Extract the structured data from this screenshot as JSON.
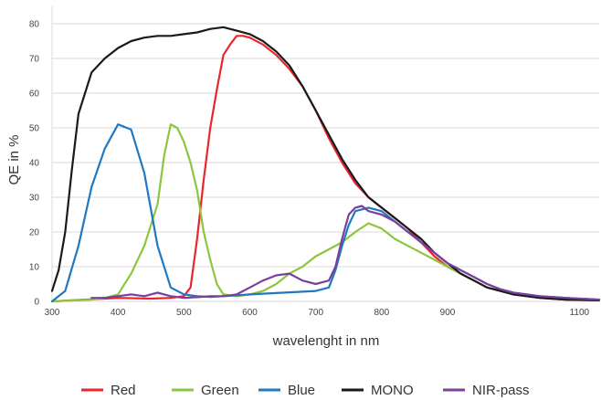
{
  "chart_data": {
    "type": "line",
    "title": "",
    "xlabel": "wavelenght in nm",
    "ylabel": "QE in %",
    "xlim": [
      300,
      1130
    ],
    "ylim": [
      0,
      85
    ],
    "x_ticks": [
      300,
      400,
      500,
      600,
      700,
      800,
      900,
      1100
    ],
    "x_tick_labels": [
      "300",
      "400",
      "500",
      "600",
      "700",
      "800",
      "900",
      "1100"
    ],
    "y_ticks": [
      0,
      10,
      20,
      30,
      40,
      50,
      60,
      70,
      80
    ],
    "y_tick_labels": [
      "0",
      "10",
      "20",
      "30",
      "40",
      "50",
      "60",
      "70",
      "80"
    ],
    "grid": true,
    "legend_position": "bottom",
    "series": [
      {
        "name": "Red",
        "color": "#e8262b",
        "x": [
          300,
          350,
          400,
          450,
          480,
          500,
          510,
          520,
          530,
          540,
          550,
          560,
          570,
          580,
          590,
          600,
          620,
          640,
          660,
          680,
          700,
          720,
          740,
          760,
          780,
          800,
          820,
          840,
          860,
          880,
          900,
          920,
          940,
          960,
          980,
          1000,
          1040,
          1080,
          1130
        ],
        "y": [
          0,
          0.5,
          1,
          0.8,
          1,
          1.5,
          4,
          18,
          35,
          50,
          61,
          71,
          74,
          76.5,
          76.5,
          76,
          74,
          71,
          67,
          62,
          55,
          47,
          40,
          34,
          30,
          27,
          24,
          21,
          17,
          13,
          10,
          8,
          6,
          4,
          3,
          2,
          1,
          0.5,
          0.3
        ]
      },
      {
        "name": "Green",
        "color": "#8cc63f",
        "x": [
          300,
          360,
          380,
          400,
          420,
          440,
          460,
          470,
          480,
          490,
          500,
          510,
          520,
          530,
          540,
          550,
          560,
          580,
          600,
          620,
          640,
          660,
          680,
          700,
          720,
          740,
          760,
          780,
          800,
          820,
          840,
          860,
          880,
          900,
          920,
          940,
          960,
          980,
          1000,
          1040,
          1080,
          1130
        ],
        "y": [
          0,
          0.5,
          1,
          2,
          8,
          16,
          28,
          42,
          51,
          50,
          46,
          40,
          32,
          20,
          12,
          5,
          2,
          1.5,
          2,
          3,
          5,
          8,
          10,
          13,
          15,
          17,
          20,
          22.5,
          21,
          18,
          16,
          14,
          12,
          10,
          8,
          6,
          4,
          3,
          2,
          1,
          0.5,
          0.3
        ]
      },
      {
        "name": "Blue",
        "color": "#1f78c1",
        "x": [
          300,
          320,
          340,
          360,
          380,
          400,
          420,
          440,
          460,
          480,
          500,
          520,
          540,
          560,
          600,
          650,
          700,
          720,
          730,
          740,
          750,
          760,
          780,
          800,
          820,
          840,
          860,
          880,
          900,
          920,
          940,
          960,
          980,
          1000,
          1040,
          1080,
          1130
        ],
        "y": [
          0,
          3,
          16,
          33,
          44,
          51,
          49.5,
          37,
          16,
          4,
          2,
          1.5,
          1.3,
          1.5,
          2,
          2.5,
          3,
          4,
          9,
          16,
          22,
          26,
          27,
          26,
          23,
          20,
          17,
          14,
          11,
          9,
          7,
          5,
          3.5,
          2.5,
          1.5,
          1,
          0.5
        ]
      },
      {
        "name": "MONO",
        "color": "#1a1a1a",
        "x": [
          300,
          310,
          320,
          330,
          340,
          350,
          360,
          380,
          400,
          420,
          440,
          460,
          480,
          500,
          520,
          540,
          560,
          580,
          600,
          620,
          640,
          660,
          680,
          700,
          720,
          740,
          760,
          780,
          800,
          820,
          840,
          860,
          880,
          900,
          920,
          940,
          960,
          980,
          1000,
          1040,
          1080,
          1130
        ],
        "y": [
          3,
          9,
          20,
          38,
          54,
          60,
          66,
          70,
          73,
          75,
          76,
          76.5,
          76.5,
          77,
          77.5,
          78.5,
          79,
          78,
          77,
          75,
          72,
          68,
          62,
          55,
          48,
          41,
          35,
          30,
          27,
          24,
          21,
          18,
          14,
          11,
          8,
          6,
          4,
          3,
          2,
          1,
          0.5,
          0.3
        ]
      },
      {
        "name": "NIR-pass",
        "color": "#7b3f9e",
        "x": [
          360,
          380,
          400,
          420,
          440,
          460,
          480,
          500,
          520,
          540,
          560,
          580,
          600,
          620,
          640,
          660,
          680,
          700,
          720,
          730,
          740,
          750,
          760,
          770,
          780,
          800,
          820,
          840,
          860,
          880,
          900,
          920,
          940,
          960,
          980,
          1000,
          1040,
          1080,
          1130
        ],
        "y": [
          1,
          1,
          1.5,
          2,
          1.5,
          2.5,
          1.5,
          1,
          1.2,
          1.5,
          1.5,
          2,
          4,
          6,
          7.5,
          8,
          6,
          5,
          6,
          10,
          18,
          25,
          27,
          27.5,
          26,
          25,
          23,
          20,
          17,
          14,
          11,
          9,
          7,
          5,
          3.5,
          2.5,
          1.5,
          1,
          0.5
        ]
      }
    ]
  }
}
